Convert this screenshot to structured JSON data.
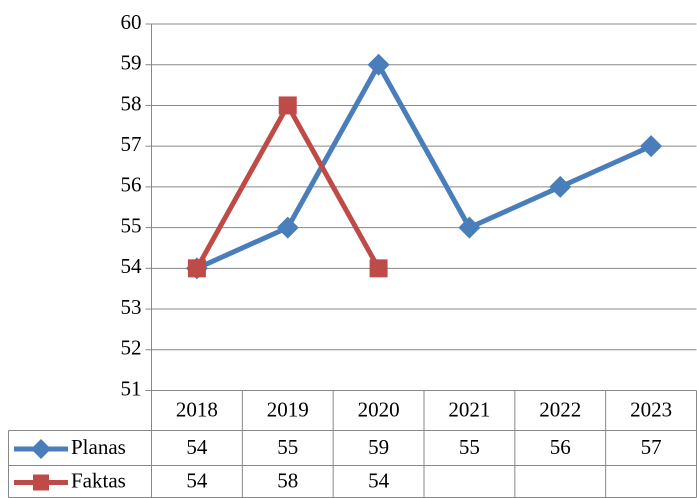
{
  "chart_data": {
    "type": "line",
    "categories": [
      "2018",
      "2019",
      "2020",
      "2021",
      "2022",
      "2023"
    ],
    "series": [
      {
        "name": "Planas",
        "color": "#4a7ebb",
        "marker": "diamond",
        "values": [
          54,
          55,
          59,
          55,
          56,
          57
        ]
      },
      {
        "name": "Faktas",
        "color": "#be4b48",
        "marker": "square",
        "values": [
          54,
          58,
          54,
          null,
          null,
          null
        ]
      }
    ],
    "ylim": [
      51,
      60
    ],
    "yticks": [
      51,
      52,
      53,
      54,
      55,
      56,
      57,
      58,
      59,
      60
    ],
    "grid": true,
    "data_table": true
  }
}
